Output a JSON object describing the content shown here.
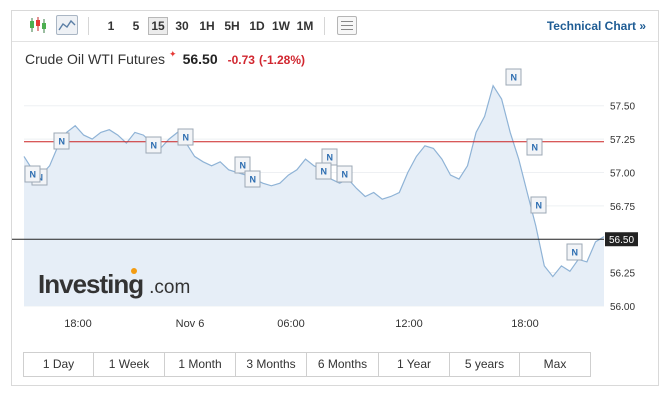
{
  "toolbar": {
    "chart_type_icons": [
      "candlestick-chart-icon",
      "area-chart-icon"
    ],
    "intervals": [
      "1",
      "5",
      "15",
      "30",
      "1H",
      "5H",
      "1D",
      "1W",
      "1M"
    ],
    "active_interval": "15",
    "table_icon": "table-icon",
    "technical_link": "Technical Chart »"
  },
  "header": {
    "name": "Crude Oil WTI Futures",
    "star": "✦",
    "price": "56.50",
    "change": "-0.73",
    "change_pct": "(-1.28%)"
  },
  "logo": {
    "brand": "Investing",
    "suffix": ".com"
  },
  "ranges": [
    "1 Day",
    "1 Week",
    "1 Month",
    "3 Months",
    "6 Months",
    "1 Year",
    "5 years",
    "Max"
  ],
  "colors": {
    "area_fill": "#e6eef7",
    "line": "#8fb3d6",
    "prev_close_line": "#cc2222",
    "current_line": "#222222",
    "price_tag": "#222222",
    "news_marker": "#2b6cb0"
  },
  "chart_data": {
    "type": "area",
    "x_tick_labels": [
      "18:00",
      "Nov 6",
      "06:00",
      "12:00",
      "18:00"
    ],
    "y_ticks": [
      "57.50",
      "57.25",
      "57.00",
      "56.75",
      "56.50",
      "56.25",
      "56.00"
    ],
    "ylim": [
      56.0,
      57.7
    ],
    "previous_close": 57.23,
    "last_price": 56.5,
    "last_price_label": "56.50",
    "values": [
      57.12,
      57.02,
      56.98,
      57.05,
      57.2,
      57.3,
      57.35,
      57.28,
      57.25,
      57.3,
      57.32,
      57.28,
      57.22,
      57.3,
      57.28,
      57.22,
      57.18,
      57.25,
      57.3,
      57.22,
      57.12,
      57.08,
      57.05,
      57.08,
      57.02,
      57.0,
      56.98,
      56.95,
      56.92,
      56.9,
      56.92,
      56.98,
      57.02,
      57.1,
      57.05,
      57.02,
      56.95,
      56.92,
      56.95,
      56.88,
      56.82,
      56.85,
      56.8,
      56.82,
      56.85,
      57.0,
      57.12,
      57.2,
      57.18,
      57.1,
      56.98,
      56.95,
      57.05,
      57.3,
      57.42,
      57.65,
      57.55,
      57.3,
      57.1,
      56.85,
      56.6,
      56.3,
      56.22,
      56.3,
      56.26,
      56.35,
      56.33,
      56.48,
      56.52
    ],
    "news_markers": 12
  }
}
